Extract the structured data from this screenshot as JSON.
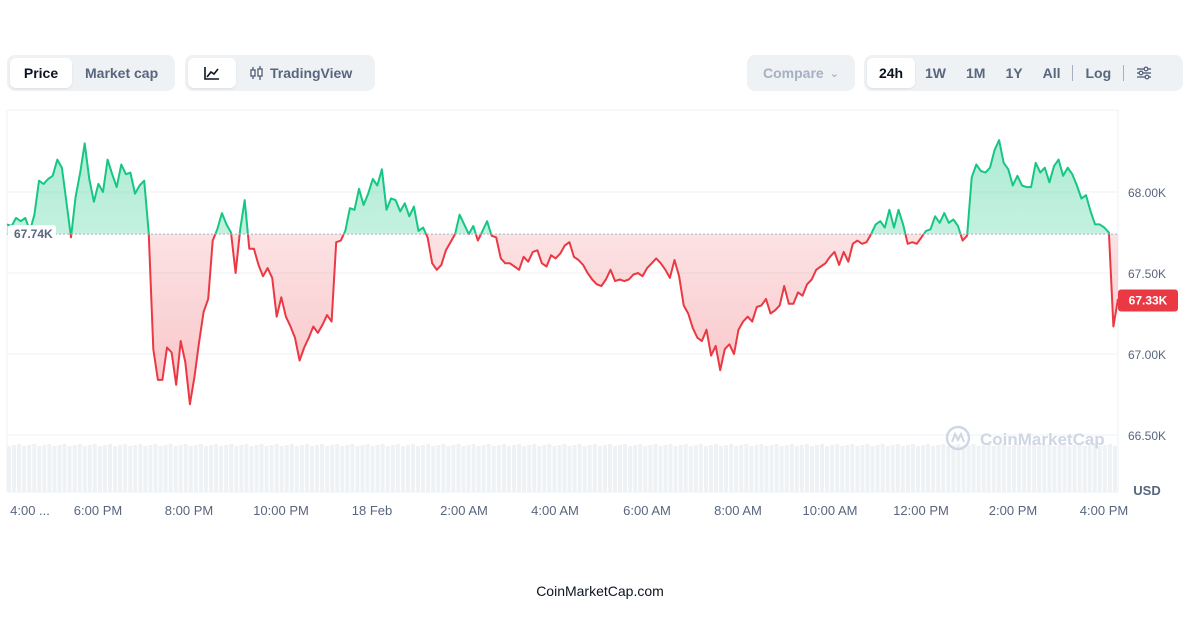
{
  "toolbar": {
    "price_label": "Price",
    "market_cap_label": "Market cap",
    "tradingview_label": "TradingView",
    "compare_label": "Compare",
    "ranges": [
      "24h",
      "1W",
      "1M",
      "1Y",
      "All"
    ],
    "active_range": "24h",
    "log_label": "Log"
  },
  "colors": {
    "up": "#16c784",
    "down": "#ea3943",
    "grid": "#eff2f5",
    "axis_text": "#58667e"
  },
  "chart_data": {
    "type": "line",
    "x_ticks": [
      "4:00 ...",
      "6:00 PM",
      "8:00 PM",
      "10:00 PM",
      "18 Feb",
      "2:00 AM",
      "4:00 AM",
      "6:00 AM",
      "8:00 AM",
      "10:00 AM",
      "12:00 PM",
      "2:00 PM",
      "4:00 PM"
    ],
    "y_ticks": [
      "68.00K",
      "67.50K",
      "67.00K",
      "66.50K"
    ],
    "y_tick_values": [
      68000,
      67500,
      67000,
      66500
    ],
    "ylim": [
      66500,
      68300
    ],
    "unit_label": "USD",
    "baseline_value": 67740,
    "baseline_label": "67.74K",
    "current_value": 67330,
    "current_label": "67.33K",
    "watermark": "CoinMarketCap",
    "grid": true,
    "values": [
      67800,
      67790,
      67840,
      67820,
      67840,
      67760,
      67860,
      68070,
      68050,
      68080,
      68100,
      68200,
      68150,
      67940,
      67720,
      67970,
      68120,
      68300,
      68080,
      67940,
      68050,
      68000,
      68200,
      68110,
      68030,
      68170,
      68110,
      68120,
      67990,
      68040,
      68070,
      67750,
      67030,
      66840,
      66840,
      67040,
      67010,
      66810,
      67080,
      66950,
      66690,
      66860,
      67070,
      67260,
      67340,
      67700,
      67770,
      67870,
      67800,
      67750,
      67500,
      67770,
      67950,
      67650,
      67650,
      67550,
      67480,
      67530,
      67470,
      67230,
      67350,
      67230,
      67170,
      67100,
      66960,
      67040,
      67100,
      67170,
      67130,
      67180,
      67240,
      67200,
      67690,
      67700,
      67760,
      67900,
      67890,
      68020,
      67920,
      67990,
      68080,
      68040,
      68140,
      67890,
      67960,
      67950,
      67880,
      67930,
      67850,
      67910,
      67760,
      67780,
      67720,
      67560,
      67520,
      67550,
      67640,
      67690,
      67740,
      67860,
      67800,
      67740,
      67790,
      67700,
      67760,
      67820,
      67730,
      67720,
      67590,
      67560,
      67560,
      67540,
      67520,
      67600,
      67570,
      67630,
      67640,
      67560,
      67540,
      67610,
      67590,
      67620,
      67670,
      67690,
      67600,
      67580,
      67550,
      67500,
      67460,
      67430,
      67420,
      67460,
      67520,
      67450,
      67460,
      67450,
      67460,
      67490,
      67500,
      67480,
      67530,
      67560,
      67590,
      67560,
      67520,
      67470,
      67580,
      67480,
      67300,
      67250,
      67160,
      67100,
      67080,
      67150,
      66990,
      67050,
      66900,
      67030,
      67060,
      67000,
      67150,
      67200,
      67230,
      67200,
      67290,
      67300,
      67340,
      67250,
      67270,
      67300,
      67420,
      67310,
      67310,
      67380,
      67360,
      67430,
      67460,
      67520,
      67540,
      67560,
      67600,
      67630,
      67550,
      67630,
      67570,
      67680,
      67700,
      67680,
      67690,
      67740,
      67800,
      67820,
      67780,
      67890,
      67780,
      67890,
      67800,
      67680,
      67690,
      67680,
      67720,
      67760,
      67770,
      67850,
      67810,
      67870,
      67810,
      67830,
      67790,
      67700,
      67730,
      68090,
      68170,
      68130,
      68120,
      68150,
      68260,
      68320,
      68180,
      68140,
      68040,
      68100,
      68040,
      68030,
      68030,
      68180,
      68120,
      68150,
      68060,
      68160,
      68200,
      68100,
      68150,
      68110,
      68040,
      67960,
      67980,
      67880,
      67800,
      67800,
      67780,
      67750,
      67170,
      67340
    ]
  },
  "footer": "CoinMarketCap.com"
}
